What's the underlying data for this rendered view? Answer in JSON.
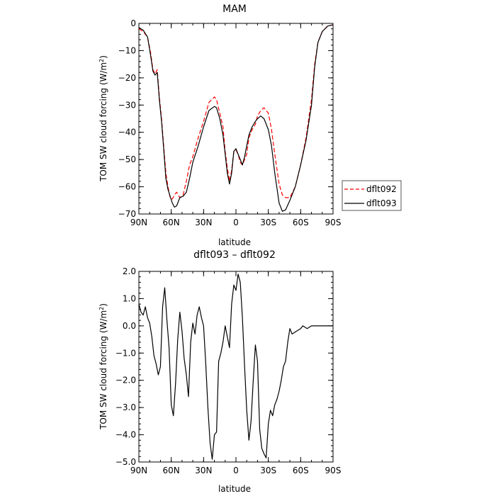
{
  "chart_data": [
    {
      "type": "line",
      "title": "MAM",
      "xlabel": "latitude",
      "ylabel": "TOM SW cloud forcing (W/m²)",
      "ylabel_parts": {
        "main": "TOM SW cloud forcing (W/m",
        "sup": "2",
        "close": ")"
      },
      "x_ticks": [
        {
          "x": 90,
          "label": "90N"
        },
        {
          "x": 60,
          "label": "60N"
        },
        {
          "x": 30,
          "label": "30N"
        },
        {
          "x": 0,
          "label": "0"
        },
        {
          "x": -30,
          "label": "30S"
        },
        {
          "x": -60,
          "label": "60S"
        },
        {
          "x": -90,
          "label": "90S"
        }
      ],
      "xlim": [
        90,
        -90
      ],
      "ylim": [
        -70,
        0
      ],
      "y_ticks": [
        0,
        -10,
        -20,
        -30,
        -40,
        -50,
        -60,
        -70
      ],
      "y_tick_labels": [
        "0",
        "−10",
        "−20",
        "−30",
        "−40",
        "−50",
        "−60",
        "−70"
      ],
      "grid": false,
      "legend": "outside-right",
      "series": [
        {
          "name": "dflt092",
          "color": "#ff0000",
          "dash": "dashed",
          "x": [
            90,
            86,
            82,
            79,
            77,
            75,
            73,
            71,
            69,
            67,
            65,
            63,
            61,
            59,
            57,
            55,
            52,
            49,
            46,
            43,
            40,
            35,
            30,
            25,
            20,
            18,
            15,
            12,
            10,
            8,
            6,
            4,
            2,
            0,
            -2,
            -4,
            -6,
            -8,
            -10,
            -12,
            -15,
            -18,
            -20,
            -23,
            -26,
            -30,
            -33,
            -36,
            -40,
            -43,
            -46,
            -50,
            -55,
            -60,
            -65,
            -70,
            -73,
            -76,
            -80,
            -85,
            -90
          ],
          "y": [
            -2,
            -3,
            -5,
            -11,
            -17,
            -18.5,
            -17,
            -27,
            -35,
            -45,
            -55,
            -60,
            -64,
            -64.5,
            -63,
            -62,
            -64,
            -63,
            -58,
            -52,
            -49,
            -42,
            -36,
            -29,
            -27,
            -28,
            -33,
            -38,
            -47,
            -53,
            -58,
            -54,
            -47,
            -46.5,
            -48,
            -51,
            -52,
            -50,
            -48,
            -42,
            -39,
            -37,
            -34,
            -32,
            -31,
            -33,
            -39,
            -48,
            -59,
            -63,
            -64,
            -64,
            -60,
            -52,
            -42,
            -28,
            -15,
            -7,
            -3,
            -1,
            -0.5
          ]
        },
        {
          "name": "dflt093",
          "color": "#000000",
          "dash": "solid",
          "x": [
            90,
            86,
            82,
            79,
            77,
            75,
            73,
            71,
            69,
            67,
            65,
            63,
            61,
            59,
            57,
            55,
            52,
            49,
            46,
            43,
            40,
            35,
            30,
            25,
            20,
            18,
            15,
            12,
            10,
            8,
            6,
            4,
            2,
            0,
            -2,
            -4,
            -6,
            -8,
            -10,
            -12,
            -15,
            -18,
            -20,
            -23,
            -26,
            -30,
            -33,
            -36,
            -40,
            -43,
            -46,
            -50,
            -55,
            -60,
            -65,
            -70,
            -73,
            -76,
            -80,
            -85,
            -90
          ],
          "y": [
            -1.5,
            -2.5,
            -5,
            -12,
            -17.5,
            -19,
            -18,
            -28,
            -36,
            -46,
            -57,
            -61,
            -63.5,
            -66,
            -67.5,
            -67,
            -64,
            -63.5,
            -62,
            -57,
            -51,
            -45,
            -38,
            -32,
            -30.5,
            -31,
            -35,
            -41,
            -48,
            -55,
            -59,
            -55,
            -47,
            -46,
            -48,
            -50,
            -52,
            -49,
            -45,
            -41,
            -38,
            -36,
            -35,
            -34,
            -35,
            -39,
            -45,
            -55,
            -66,
            -69,
            -68.5,
            -65,
            -60,
            -52,
            -43,
            -30,
            -16,
            -7,
            -3,
            -1,
            -0.5
          ]
        }
      ]
    },
    {
      "type": "line",
      "title": "dflt093 – dflt092",
      "xlabel": "latitude",
      "ylabel": "TOM SW cloud forcing (W/m²)",
      "ylabel_parts": {
        "main": "TOM SW cloud forcing (W/m",
        "sup": "2",
        "close": ")"
      },
      "x_ticks": [
        {
          "x": 90,
          "label": "90N"
        },
        {
          "x": 60,
          "label": "60N"
        },
        {
          "x": 30,
          "label": "30N"
        },
        {
          "x": 0,
          "label": "0"
        },
        {
          "x": -30,
          "label": "30S"
        },
        {
          "x": -60,
          "label": "60S"
        },
        {
          "x": -90,
          "label": "90S"
        }
      ],
      "xlim": [
        90,
        -90
      ],
      "ylim": [
        -5,
        2
      ],
      "y_ticks": [
        2,
        1,
        0,
        -1,
        -2,
        -3,
        -4,
        -5
      ],
      "y_tick_labels": [
        "2.0",
        "1.0",
        "0.0",
        "−1.0",
        "−2.0",
        "−3.0",
        "−4.0",
        "−5.0"
      ],
      "grid": false,
      "series": [
        {
          "name": "",
          "color": "#000000",
          "dash": "solid",
          "x": [
            90,
            88,
            86,
            84,
            82,
            80,
            78,
            76,
            74,
            72,
            70,
            68,
            66,
            64,
            62,
            60,
            58,
            56,
            54,
            52,
            50,
            48,
            46,
            44,
            42,
            40,
            38,
            36,
            34,
            32,
            30,
            28,
            26,
            24,
            22,
            20,
            18,
            16,
            14,
            12,
            10,
            8,
            6,
            4,
            2,
            0,
            -2,
            -4,
            -6,
            -8,
            -10,
            -12,
            -14,
            -16,
            -18,
            -20,
            -22,
            -24,
            -26,
            -28,
            -30,
            -32,
            -34,
            -36,
            -38,
            -40,
            -42,
            -44,
            -46,
            -48,
            -50,
            -52,
            -54,
            -56,
            -58,
            -60,
            -62,
            -64,
            -66,
            -68,
            -70,
            -72,
            -74,
            -76,
            -78,
            -80,
            -82,
            -84,
            -86,
            -88,
            -90
          ],
          "y": [
            0.8,
            0.5,
            0.4,
            0.7,
            0.3,
            0.1,
            -0.4,
            -1.1,
            -1.4,
            -1.8,
            -1.5,
            0.7,
            1.4,
            0.2,
            -0.8,
            -2.9,
            -3.3,
            -2.1,
            -0.5,
            0.5,
            -0.2,
            -1.2,
            -1.8,
            -2.6,
            -0.6,
            0.1,
            -0.3,
            0.4,
            0.7,
            0.3,
            0.0,
            -1.4,
            -3.0,
            -4.3,
            -4.9,
            -4.0,
            -3.9,
            -1.3,
            -1.0,
            -0.6,
            0.0,
            -0.4,
            -0.8,
            0.8,
            1.5,
            1.3,
            1.9,
            1.6,
            0.3,
            -1.5,
            -3.1,
            -4.2,
            -3.5,
            -2.0,
            -0.7,
            -1.3,
            -3.8,
            -4.5,
            -4.7,
            -4.85,
            -3.6,
            -3.1,
            -3.3,
            -2.9,
            -2.7,
            -2.4,
            -2.0,
            -1.5,
            -1.3,
            -0.6,
            -0.1,
            -0.3,
            -0.25,
            -0.2,
            -0.15,
            -0.1,
            0.0,
            -0.05,
            -0.1,
            -0.05,
            0.0,
            0.0,
            0.0,
            0.0,
            0.0,
            0.0,
            0.0,
            0.0,
            0.0,
            0.0,
            0.0
          ],
          "xs_override": true
        }
      ]
    }
  ]
}
